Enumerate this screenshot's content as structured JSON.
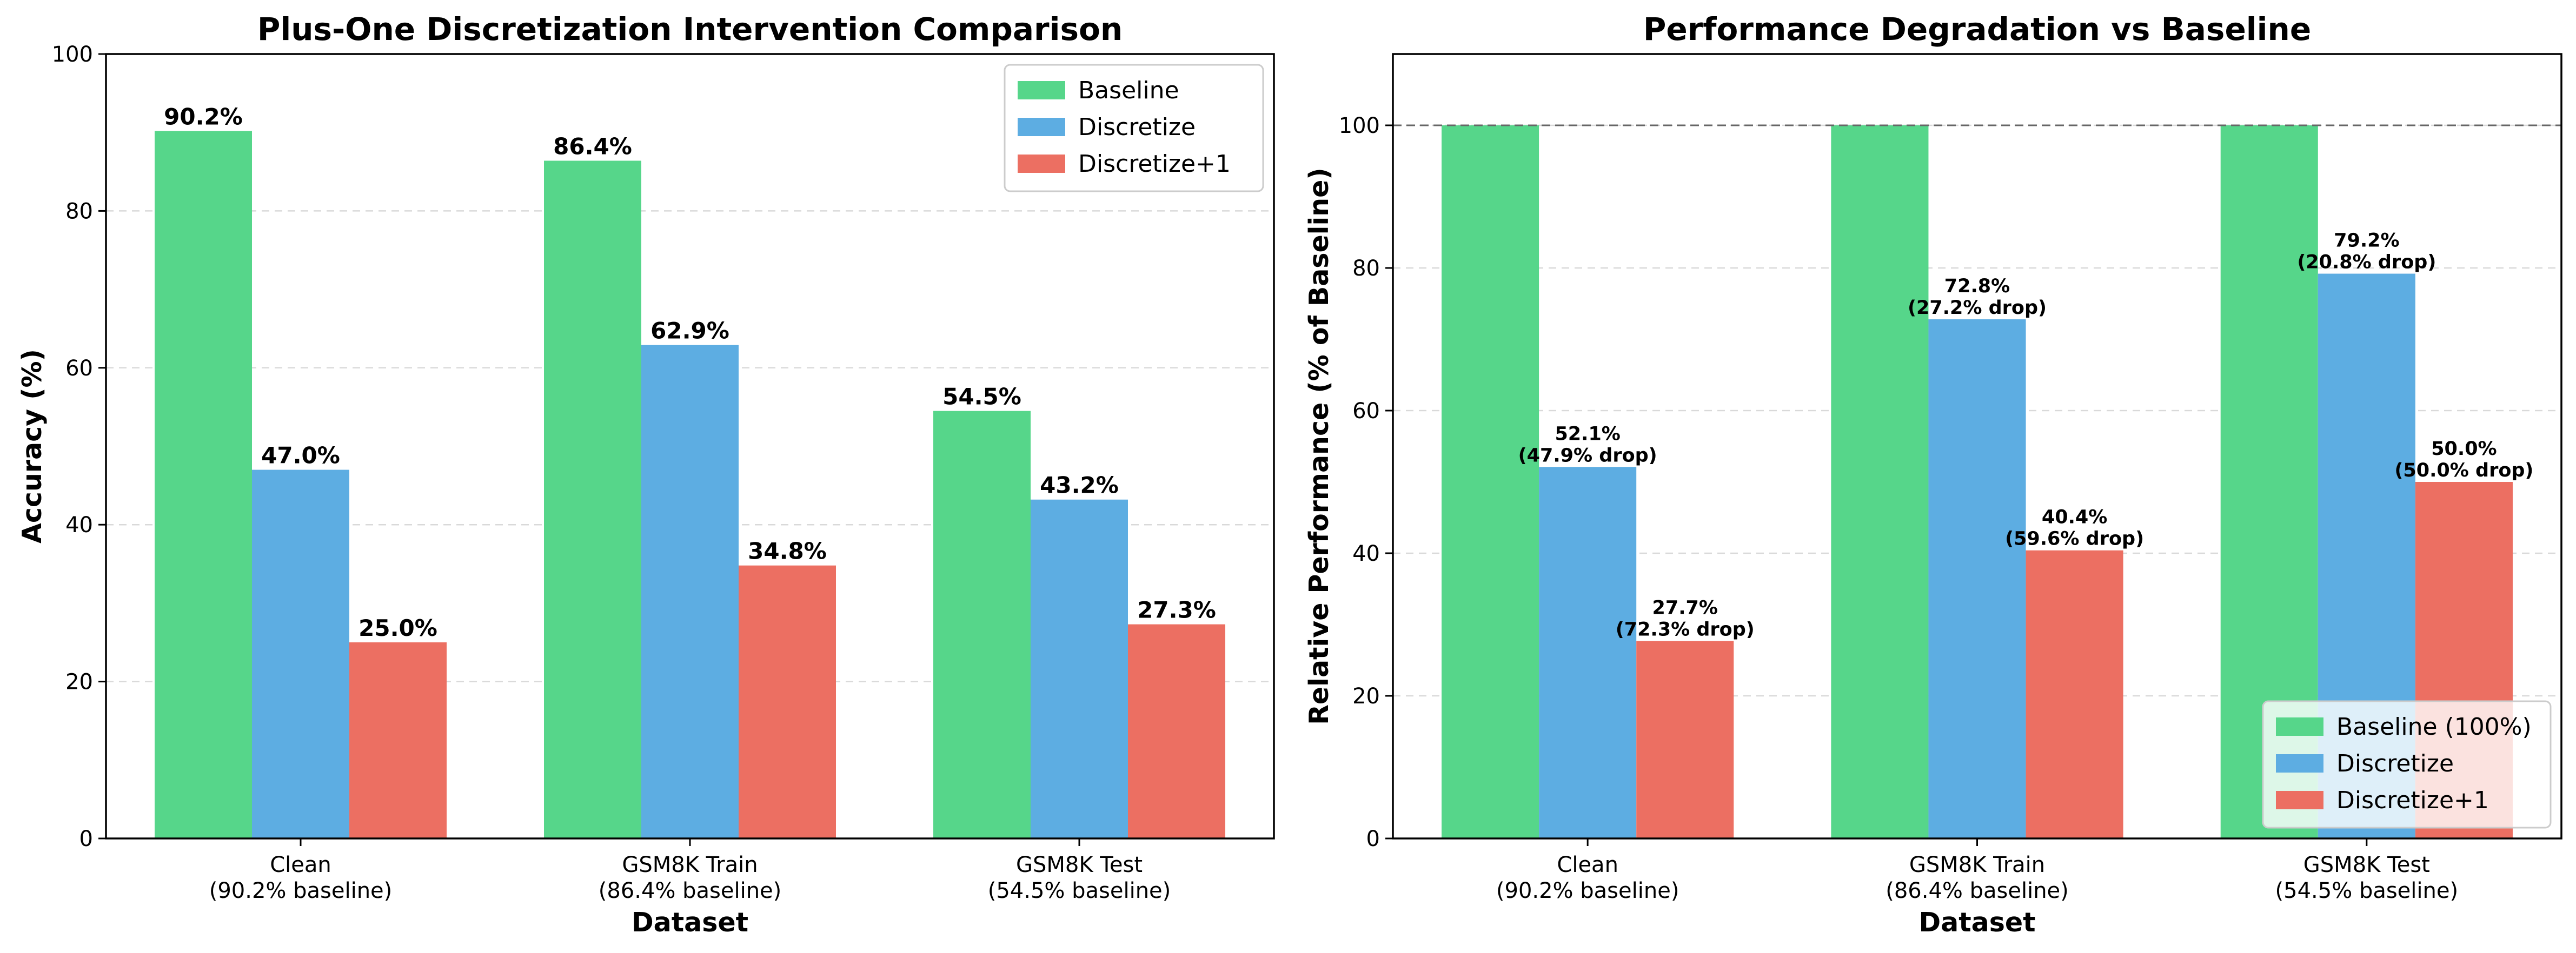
{
  "colors": {
    "baseline": "#56d68a",
    "discretize": "#5dade2",
    "discretize1": "#ec6f62"
  },
  "chart_data": [
    {
      "type": "bar",
      "title": "Plus-One Discretization Intervention Comparison",
      "xlabel": "Dataset",
      "ylabel": "Accuracy (%)",
      "ylim": [
        0,
        100
      ],
      "yticks": [
        0,
        20,
        40,
        60,
        80,
        100
      ],
      "grid": true,
      "legend_position": "top-right",
      "categories": [
        "Clean\n(90.2% baseline)",
        "GSM8K Train\n(86.4% baseline)",
        "GSM8K Test\n(54.5% baseline)"
      ],
      "series": [
        {
          "name": "Baseline",
          "values": [
            90.2,
            86.4,
            54.5
          ],
          "labels": [
            "90.2%",
            "86.4%",
            "54.5%"
          ]
        },
        {
          "name": "Discretize",
          "values": [
            47.0,
            62.9,
            43.2
          ],
          "labels": [
            "47.0%",
            "62.9%",
            "43.2%"
          ]
        },
        {
          "name": "Discretize+1",
          "values": [
            25.0,
            34.8,
            27.3
          ],
          "labels": [
            "25.0%",
            "34.8%",
            "27.3%"
          ]
        }
      ]
    },
    {
      "type": "bar",
      "title": "Performance Degradation vs Baseline",
      "xlabel": "Dataset",
      "ylabel": "Relative Performance (% of Baseline)",
      "ylim": [
        0,
        110
      ],
      "yticks": [
        0,
        20,
        40,
        60,
        80,
        100
      ],
      "grid": true,
      "reference_line": 100,
      "legend_position": "bottom-right",
      "categories": [
        "Clean\n(90.2% baseline)",
        "GSM8K Train\n(86.4% baseline)",
        "GSM8K Test\n(54.5% baseline)"
      ],
      "series": [
        {
          "name": "Baseline (100%)",
          "values": [
            100,
            100,
            100
          ],
          "labels": [
            "",
            "",
            ""
          ]
        },
        {
          "name": "Discretize",
          "values": [
            52.1,
            72.8,
            79.2
          ],
          "labels": [
            "52.1%\n(47.9% drop)",
            "72.8%\n(27.2% drop)",
            "79.2%\n(20.8% drop)"
          ]
        },
        {
          "name": "Discretize+1",
          "values": [
            27.7,
            40.4,
            50.0
          ],
          "labels": [
            "27.7%\n(72.3% drop)",
            "40.4%\n(59.6% drop)",
            "50.0%\n(50.0% drop)"
          ]
        }
      ]
    }
  ]
}
